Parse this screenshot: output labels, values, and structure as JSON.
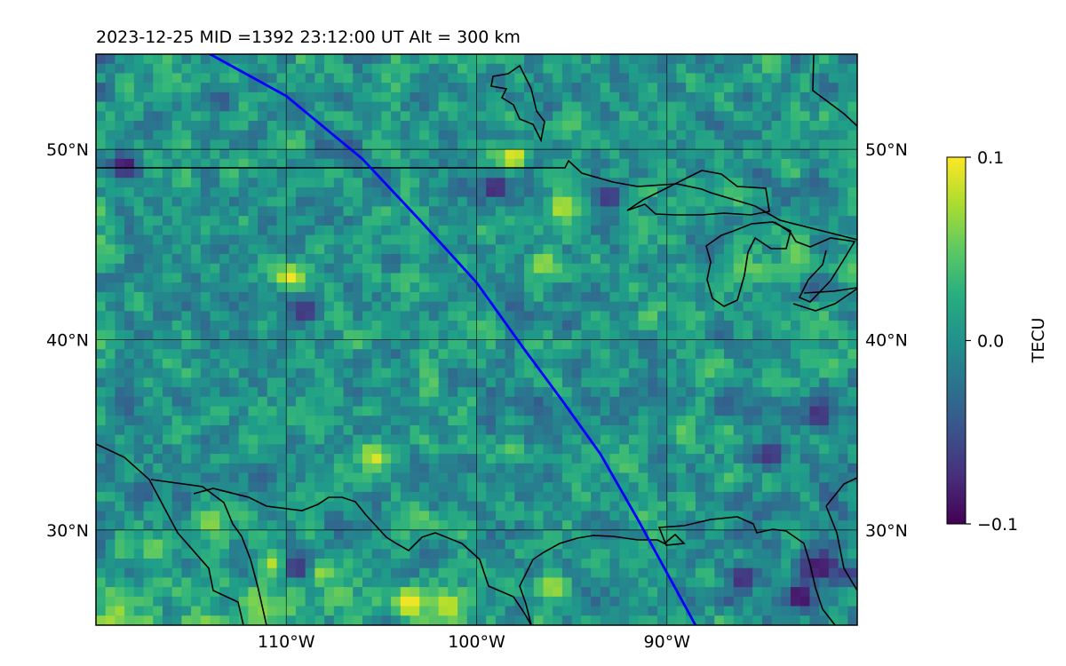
{
  "chart_data": {
    "type": "heatmap",
    "title": "2023-12-25  MID =1392    23:12:00  UT  Alt = 300 km",
    "projection": "plate-carree map",
    "lon_range": [
      -120,
      -80
    ],
    "lat_range": [
      25,
      55
    ],
    "x_ticks": [
      {
        "value": -110,
        "label": "110°W"
      },
      {
        "value": -100,
        "label": "100°W"
      },
      {
        "value": -90,
        "label": "90°W"
      }
    ],
    "y_ticks": [
      {
        "value": 30,
        "label": "30°N"
      },
      {
        "value": 40,
        "label": "40°N"
      },
      {
        "value": 50,
        "label": "50°N"
      }
    ],
    "grid": true,
    "colormap": "viridis",
    "colorbar": {
      "label": "TECU",
      "min": -0.1,
      "max": 0.1,
      "ticks": [
        {
          "value": 0.1,
          "label": "0.1"
        },
        {
          "value": 0.0,
          "label": "0.0"
        },
        {
          "value": -0.1,
          "label": "−0.1"
        }
      ]
    },
    "track": {
      "color": "#0000ff",
      "points": [
        [
          -114,
          55
        ],
        [
          -110,
          52.8
        ],
        [
          -106,
          49.5
        ],
        [
          -103,
          46.3
        ],
        [
          -100,
          43
        ],
        [
          -97.5,
          39.5
        ],
        [
          -95.5,
          36.8
        ],
        [
          -93.5,
          34
        ],
        [
          -91.5,
          30.5
        ],
        [
          -88.5,
          25
        ]
      ]
    },
    "features": {
      "hot_spots": [
        {
          "lon": -103.5,
          "lat": 26.2,
          "value": 0.1
        },
        {
          "lon": -101.5,
          "lat": 26.0,
          "value": 0.09
        },
        {
          "lon": -110.5,
          "lat": 28.2,
          "value": 0.1
        },
        {
          "lon": -108.2,
          "lat": 27.8,
          "value": 0.08
        },
        {
          "lon": -105.3,
          "lat": 33.8,
          "value": 0.09
        },
        {
          "lon": -96.0,
          "lat": 27.0,
          "value": 0.08
        },
        {
          "lon": -109.9,
          "lat": 43.3,
          "value": 0.1
        },
        {
          "lon": -98.0,
          "lat": 49.6,
          "value": 0.1
        },
        {
          "lon": -95.5,
          "lat": 47.0,
          "value": 0.09
        },
        {
          "lon": -96.5,
          "lat": 44.0,
          "value": 0.08
        },
        {
          "lon": -114.0,
          "lat": 30.5,
          "value": 0.07
        },
        {
          "lon": -117.0,
          "lat": 29.0,
          "value": 0.06
        }
      ],
      "cold_spots": [
        {
          "lon": -83.0,
          "lat": 26.5,
          "value": -0.1
        },
        {
          "lon": -86.0,
          "lat": 27.5,
          "value": -0.09
        },
        {
          "lon": -82.0,
          "lat": 36.0,
          "value": -0.08
        },
        {
          "lon": -84.5,
          "lat": 34.0,
          "value": -0.08
        },
        {
          "lon": -99.0,
          "lat": 48.0,
          "value": -0.09
        },
        {
          "lon": -93.0,
          "lat": 47.5,
          "value": -0.08
        },
        {
          "lon": -109.0,
          "lat": 41.5,
          "value": -0.08
        },
        {
          "lon": -118.5,
          "lat": 49.2,
          "value": -0.09
        },
        {
          "lon": -82.0,
          "lat": 28.0,
          "value": -0.09
        },
        {
          "lon": -109.5,
          "lat": 28.0,
          "value": -0.08
        }
      ]
    }
  }
}
